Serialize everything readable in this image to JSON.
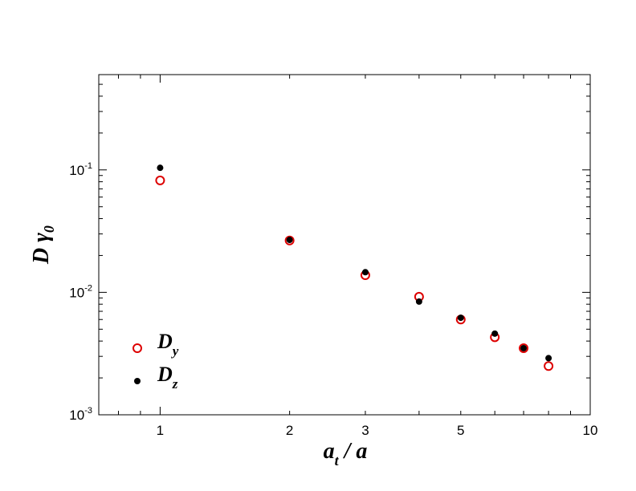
{
  "chart_data": {
    "type": "scatter",
    "title": "",
    "x_scale": "log",
    "y_scale": "log",
    "xlim": [
      0.72,
      10
    ],
    "ylim": [
      0.001,
      0.6
    ],
    "x_ticks": [
      {
        "value": 1,
        "label": "1"
      },
      {
        "value": 2,
        "label": "2"
      },
      {
        "value": 3,
        "label": "3"
      },
      {
        "value": 5,
        "label": "5"
      },
      {
        "value": 10,
        "label": "10"
      }
    ],
    "y_ticks": [
      {
        "value": 0.001,
        "base": "10",
        "exp": "-3"
      },
      {
        "value": 0.01,
        "base": "10",
        "exp": "-2"
      },
      {
        "value": 0.1,
        "base": "10",
        "exp": "-1"
      }
    ],
    "xlabel": {
      "main": "a",
      "sub": "t",
      "rest": " / a"
    },
    "ylabel": {
      "main": "D γ",
      "sub": "0"
    },
    "legend_position": "bottom-left",
    "series": [
      {
        "name": "D",
        "name_sub": "y",
        "marker": "open-circle",
        "color": "#dd0000",
        "points": [
          {
            "x": 1,
            "y": 0.082
          },
          {
            "x": 2,
            "y": 0.0265
          },
          {
            "x": 3,
            "y": 0.0138
          },
          {
            "x": 4,
            "y": 0.0092
          },
          {
            "x": 5,
            "y": 0.006
          },
          {
            "x": 6,
            "y": 0.0043
          },
          {
            "x": 7,
            "y": 0.0035
          },
          {
            "x": 8,
            "y": 0.0025
          }
        ]
      },
      {
        "name": "D",
        "name_sub": "z",
        "marker": "filled-circle",
        "color": "#000000",
        "points": [
          {
            "x": 1,
            "y": 0.104
          },
          {
            "x": 2,
            "y": 0.0268
          },
          {
            "x": 3,
            "y": 0.0146
          },
          {
            "x": 4,
            "y": 0.0084
          },
          {
            "x": 5,
            "y": 0.0062
          },
          {
            "x": 6,
            "y": 0.0046
          },
          {
            "x": 7,
            "y": 0.0035
          },
          {
            "x": 8,
            "y": 0.0029
          }
        ]
      }
    ]
  }
}
